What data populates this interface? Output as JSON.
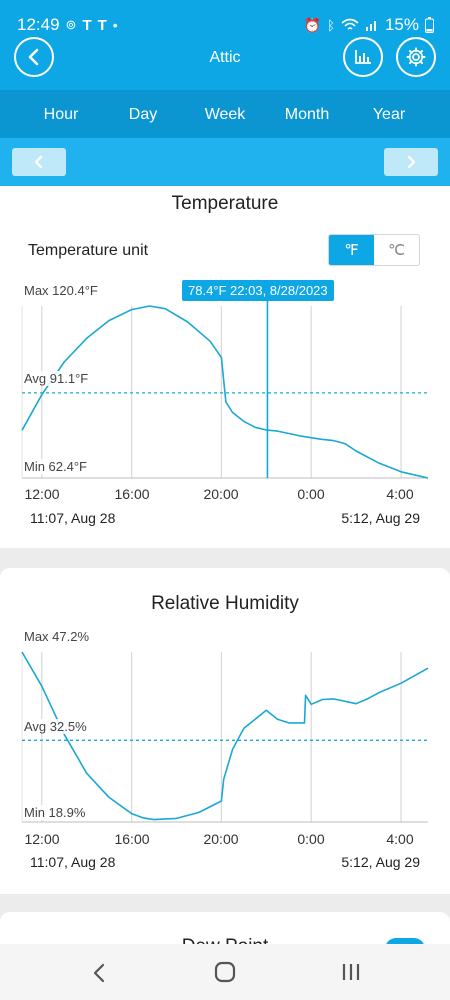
{
  "status_bar": {
    "time": "12:49",
    "icons_left": [
      "notification-icon",
      "tesla-icon",
      "tesla-icon",
      "dot-icon"
    ],
    "icons_right": [
      "alarm-icon",
      "bluetooth-icon",
      "wifi-icon",
      "signal-icon",
      "battery-icon"
    ],
    "battery": "15%"
  },
  "header": {
    "title": "Attic",
    "back_icon": "chevron-left-icon",
    "chart_icon": "bar-chart-icon",
    "settings_icon": "gear-icon"
  },
  "tabs": [
    "Hour",
    "Day",
    "Week",
    "Month",
    "Year"
  ],
  "period_nav": {
    "prev_icon": "chevron-left-icon",
    "next_icon": "chevron-right-icon"
  },
  "temperature_card": {
    "title": "Temperature",
    "unit_label": "Temperature unit",
    "unit_options": [
      "℉",
      "℃"
    ],
    "selected_unit": "℉",
    "tooltip": "78.4°F 22:03, 8/28/2023",
    "max_label": "Max 120.4°F",
    "avg_label": "Avg 91.1°F",
    "min_label": "Min 62.4°F",
    "x_ticks": [
      "12:00",
      "16:00",
      "20:00",
      "0:00",
      "4:00"
    ],
    "range_start": "11:07, Aug 28",
    "range_end": "5:12, Aug 29"
  },
  "humidity_card": {
    "title": "Relative Humidity",
    "max_label": "Max 47.2%",
    "avg_label": "Avg 32.5%",
    "min_label": "Min 18.9%",
    "x_ticks": [
      "12:00",
      "16:00",
      "20:00",
      "0:00",
      "4:00"
    ],
    "range_start": "11:07, Aug 28",
    "range_end": "5:12, Aug 29"
  },
  "dew_point_card": {
    "title": "Dew Point"
  },
  "colors": {
    "accent": "#0ea7e6",
    "line": "#1aa8d4"
  },
  "chart_data": [
    {
      "type": "line",
      "title": "Temperature",
      "ylabel": "°F",
      "xlim": [
        11.12,
        29.2
      ],
      "ylim": [
        62.4,
        120.4
      ],
      "avg": 91.1,
      "cursor_x": 22.05,
      "x_ticks": [
        12,
        16,
        20,
        24,
        28
      ],
      "x_tick_labels": [
        "12:00",
        "16:00",
        "20:00",
        "0:00",
        "4:00"
      ],
      "x": [
        11.12,
        12,
        13,
        14,
        15,
        16,
        16.8,
        17.5,
        18.5,
        19.5,
        20.0,
        20.2,
        20.5,
        21.0,
        21.5,
        22.0,
        22.5,
        23.0,
        23.5,
        24.0,
        24.5,
        25.0,
        25.5,
        26.0,
        27.0,
        28.0,
        29.2
      ],
      "y": [
        78.5,
        90.5,
        101.5,
        109.5,
        115.5,
        119.2,
        120.4,
        119.5,
        115.0,
        108.5,
        103.0,
        88.0,
        84.5,
        81.5,
        79.5,
        78.6,
        78.2,
        77.4,
        76.6,
        76.0,
        75.4,
        75.0,
        74.0,
        71.5,
        67.5,
        64.5,
        62.4
      ]
    },
    {
      "type": "line",
      "title": "Relative Humidity",
      "ylabel": "%",
      "xlim": [
        11.12,
        29.2
      ],
      "ylim": [
        18.9,
        47.2
      ],
      "avg": 32.5,
      "x_ticks": [
        12,
        16,
        20,
        24,
        28
      ],
      "x_tick_labels": [
        "12:00",
        "16:00",
        "20:00",
        "0:00",
        "4:00"
      ],
      "x": [
        11.12,
        12,
        13,
        14,
        15,
        16,
        16.5,
        17,
        18,
        19,
        20,
        20.1,
        20.5,
        21,
        22,
        22.5,
        23.0,
        23.7,
        23.75,
        24,
        24.5,
        25.0,
        26.0,
        26.5,
        27.0,
        28.0,
        29.2
      ],
      "y": [
        47.2,
        41.5,
        33.5,
        27.0,
        23.0,
        20.3,
        19.6,
        19.3,
        19.5,
        20.5,
        22.4,
        26.0,
        31.0,
        34.5,
        37.5,
        36.0,
        35.4,
        35.4,
        40.0,
        38.5,
        39.3,
        39.4,
        38.6,
        39.4,
        40.4,
        42.0,
        44.5
      ]
    }
  ]
}
